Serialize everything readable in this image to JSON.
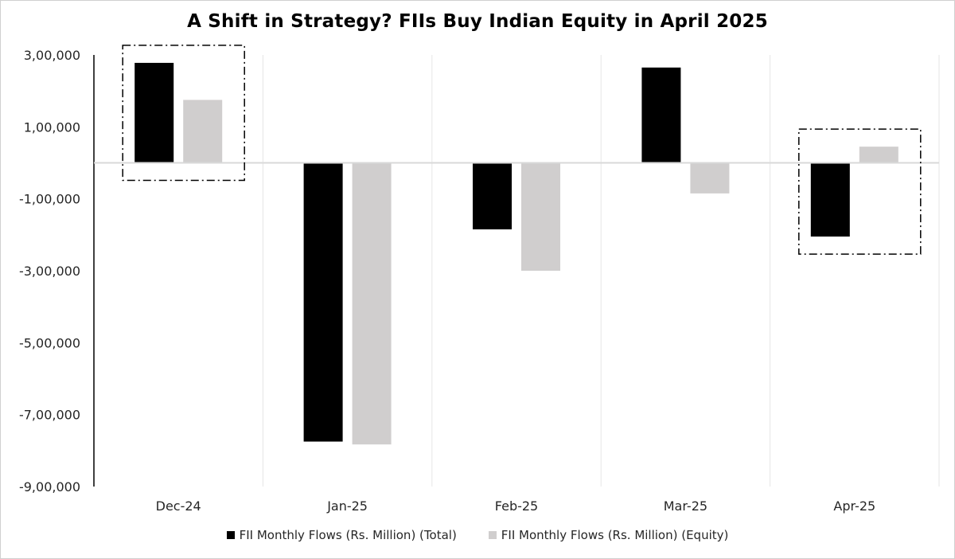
{
  "chart_data": {
    "type": "bar",
    "title": "A Shift in Strategy? FIIs Buy Indian Equity in April 2025",
    "categories": [
      "Dec-24",
      "Jan-25",
      "Feb-25",
      "Mar-25",
      "Apr-25"
    ],
    "series": [
      {
        "name": "FII Monthly Flows (Rs. Million) (Total)",
        "color": "#000000",
        "values": [
          278000,
          -775000,
          -185000,
          265000,
          -205000
        ]
      },
      {
        "name": "FII Monthly Flows (Rs. Million) (Equity)",
        "color": "#d0cece",
        "values": [
          175000,
          -783000,
          -300000,
          -85000,
          45000
        ]
      }
    ],
    "ylim": [
      -900000,
      300000
    ],
    "yticks": [
      300000,
      100000,
      -100000,
      -300000,
      -500000,
      -700000,
      -900000
    ],
    "ytick_labels": [
      "3,00,000",
      "1,00,000",
      "-1,00,000",
      "-3,00,000",
      "-5,00,000",
      "-7,00,000",
      "-9,00,000"
    ],
    "grid": "vertical",
    "legend_position": "bottom",
    "highlighted_categories": [
      "Dec-24",
      "Apr-25"
    ]
  }
}
